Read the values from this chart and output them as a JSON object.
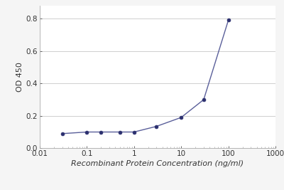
{
  "x": [
    0.03,
    0.1,
    0.2,
    0.5,
    1.0,
    3.0,
    10.0,
    30.0,
    100.0
  ],
  "y": [
    0.09,
    0.1,
    0.1,
    0.1,
    0.1,
    0.135,
    0.19,
    0.3,
    0.79
  ],
  "line_color": "#5a5f9a",
  "marker_color": "#2b2f6e",
  "marker_size": 3.5,
  "line_width": 1.0,
  "xlabel": "Recombinant Protein Concentration (ng/ml)",
  "ylabel": "OD 450",
  "xlim_log": [
    -2,
    3
  ],
  "ylim": [
    0,
    0.88
  ],
  "yticks": [
    0,
    0.2,
    0.4,
    0.6,
    0.8
  ],
  "xticks": [
    0.01,
    0.1,
    1,
    10,
    100,
    1000
  ],
  "xtick_labels": [
    "0.01",
    "0.1",
    "1",
    "10",
    "100",
    "1000"
  ],
  "background_color": "#f5f5f5",
  "plot_bg_color": "#ffffff",
  "grid_color": "#c8c8c8",
  "label_fontsize": 8,
  "tick_fontsize": 7.5,
  "spine_color": "#aaaaaa"
}
